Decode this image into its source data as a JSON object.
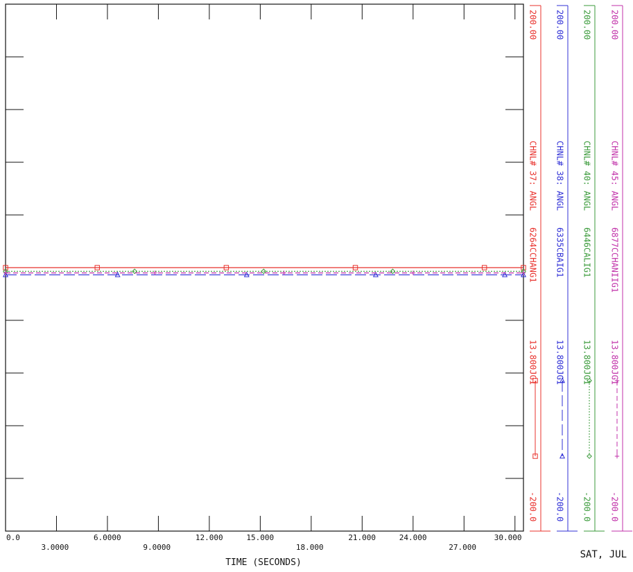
{
  "chart_data": {
    "type": "line",
    "xlabel": "TIME (SECONDS)",
    "xlim": [
      0,
      30.5
    ],
    "ylim": [
      -200,
      200
    ],
    "x_ticks_upper": [
      "0.0",
      "6.0000",
      "12.000",
      "15.000",
      "21.000",
      "24.000",
      "30.000"
    ],
    "x_ticks_lower": [
      "3.0000",
      "9.0000",
      "18.000",
      "27.000"
    ],
    "grid": false,
    "series": [
      {
        "name": "CHNL# 37: ANGL",
        "id": "6264CCHANG1",
        "color": "#e8302b",
        "marker": "square",
        "dash": "solid",
        "y_top": "200.00",
        "y_bottom": "-200.0",
        "scale_note": "13.800JG1",
        "x": [
          0,
          30.5
        ],
        "y": [
          0,
          0
        ],
        "marker_x": [
          0,
          5.4,
          13.0,
          20.6,
          28.2,
          30.5
        ]
      },
      {
        "name": "CHNL# 38: ANGL",
        "id": "6335CBAIG1",
        "color": "#2f2fd6",
        "marker": "triangle",
        "dash": "longdash",
        "y_top": "200.00",
        "y_bottom": "-200.0",
        "scale_note": "13.800JG1",
        "x": [
          0,
          30.5
        ],
        "y": [
          -5.5,
          -5.5
        ],
        "marker_x": [
          0,
          6.6,
          14.2,
          21.8,
          29.4,
          30.5
        ]
      },
      {
        "name": "CHNL# 40: ANGL",
        "id": "6446CALIG1",
        "color": "#3a9a3a",
        "marker": "diamond",
        "dash": "dotted",
        "y_top": "200.00",
        "y_bottom": "-200.0",
        "scale_note": "13.800JG1",
        "x": [
          0,
          30.5
        ],
        "y": [
          -2.8,
          -2.8
        ],
        "marker_x": [
          0,
          7.6,
          15.2,
          22.8,
          30.5
        ]
      },
      {
        "name": "CHNL# 45: ANGL",
        "id": "6877CCHANIIG1",
        "color": "#c02fa8",
        "marker": "plus",
        "dash": "dashed",
        "y_top": "200.00",
        "y_bottom": "-200.0",
        "scale_note": "13.800JG1",
        "x": [
          0,
          30.5
        ],
        "y": [
          -4.0,
          -4.0
        ],
        "marker_x": [
          0,
          8.8,
          16.4,
          24.0,
          30.5
        ]
      }
    ]
  },
  "footer": {
    "date": "SAT, JUL"
  }
}
